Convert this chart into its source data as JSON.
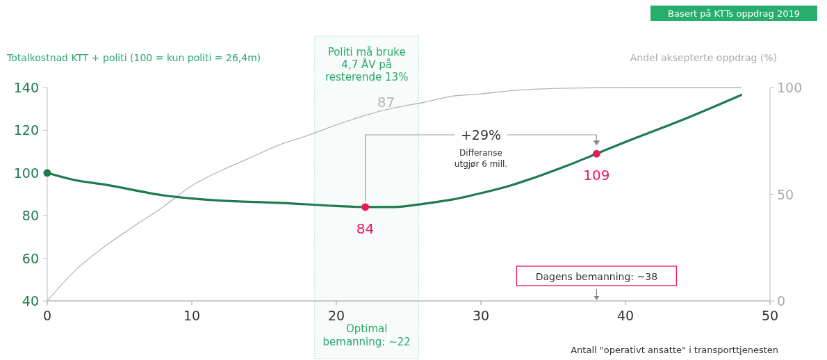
{
  "chart_data": {
    "type": "line",
    "subtitle": "Basert på KTTs oppdrag 2019",
    "ylabel": "Totalkostnad KTT + politi (100 = kun politi = 26,4m)",
    "y2label": "Andel aksepterte oppdrag (%)",
    "xlabel": "Antall \"operativt ansatte\" i transporttjenesten",
    "xlim": [
      0,
      50
    ],
    "xticks": [
      0,
      10,
      20,
      30,
      40,
      50
    ],
    "ylim": [
      40,
      140
    ],
    "yticks": [
      40,
      60,
      80,
      100,
      120,
      140
    ],
    "y2lim": [
      0,
      100
    ],
    "y2ticks": [
      0,
      50,
      100
    ],
    "series": [
      {
        "axis": "y2",
        "color": "#b5b5b5",
        "x": [
          0,
          2,
          4,
          6,
          8,
          10,
          12,
          14,
          16,
          18,
          20,
          22,
          24,
          26,
          28,
          30,
          32,
          34,
          36,
          40,
          48
        ],
        "values": [
          0,
          14.7,
          25.7,
          35,
          44,
          54,
          61,
          67,
          73,
          77.5,
          82.5,
          87,
          90.5,
          93,
          96,
          97,
          98.5,
          99.3,
          99.7,
          100,
          100
        ],
        "value_labels": [
          null,
          null,
          null,
          null,
          null,
          null,
          null,
          null,
          null,
          null,
          null,
          "87",
          null,
          null,
          null,
          null,
          null,
          null,
          null,
          null,
          null
        ]
      },
      {
        "color": "#1e7a4f",
        "x": [
          0,
          2,
          4,
          8,
          10,
          12,
          16,
          20,
          22,
          24,
          26,
          28,
          30,
          32,
          34,
          36,
          38,
          40,
          44,
          48
        ],
        "values": [
          100,
          96.5,
          94.5,
          89.5,
          88,
          87,
          86,
          84.5,
          84,
          84,
          85.5,
          87.5,
          90.5,
          94,
          98.5,
          103.5,
          109,
          114.5,
          125,
          136.5
        ]
      },
      {
        "type": "scatter",
        "marker": "circle",
        "color": "#1e7a4f",
        "x": [
          0
        ],
        "values": [
          100
        ]
      },
      {
        "type": "scatter",
        "marker": "circle",
        "color": "#e8195a",
        "x": [
          22,
          38
        ],
        "values": [
          84,
          109
        ],
        "value_labels": [
          "84",
          "109"
        ]
      }
    ],
    "bands": [
      {
        "axis": "x",
        "from": 18.5,
        "to": 25.7,
        "color": "#9fd3c3"
      }
    ],
    "annotations": [
      "Politi må bruke\n4,7 ÅV på\nresterende 13%",
      "Optimal\nbemanning: ~22",
      "+29%",
      "Differanse\nutgjør 6 mill.",
      "Dagens bemanning: ~38"
    ]
  }
}
